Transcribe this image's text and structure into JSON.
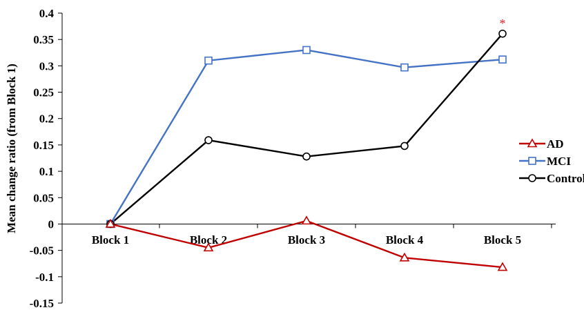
{
  "chart_data": {
    "type": "line",
    "title": "",
    "xlabel": "",
    "ylabel": "Mean change ratio (from Block 1)",
    "categories": [
      "Block 1",
      "Block 2",
      "Block 3",
      "Block 4",
      "Block 5"
    ],
    "ylim": [
      -0.15,
      0.4
    ],
    "yticks": [
      0.4,
      0.35,
      0.3,
      0.25,
      0.2,
      0.15,
      0.1,
      0.05,
      0,
      -0.05,
      -0.1,
      -0.15
    ],
    "ytick_labels": [
      "0.4",
      "0.35",
      "0.3",
      "0.25",
      "0.2",
      "0.15",
      "0.1",
      "0.05",
      "0",
      "-0.05",
      "-0.1",
      "-0.15"
    ],
    "grid": false,
    "legend_position": "right",
    "series": [
      {
        "name": "AD",
        "color": "#c00000",
        "marker": "triangle",
        "values": [
          0,
          -0.045,
          0.006,
          -0.064,
          -0.082
        ]
      },
      {
        "name": "MCI",
        "color": "#4472c4",
        "marker": "square",
        "values": [
          0,
          0.31,
          0.33,
          0.297,
          0.312
        ]
      },
      {
        "name": "Controls",
        "color": "#000000",
        "marker": "circle",
        "values": [
          0,
          0.159,
          0.128,
          0.148,
          0.361
        ]
      }
    ],
    "annotations": [
      {
        "text": "*",
        "category": "Block 5",
        "series": "Controls",
        "color": "#e02020"
      }
    ]
  }
}
